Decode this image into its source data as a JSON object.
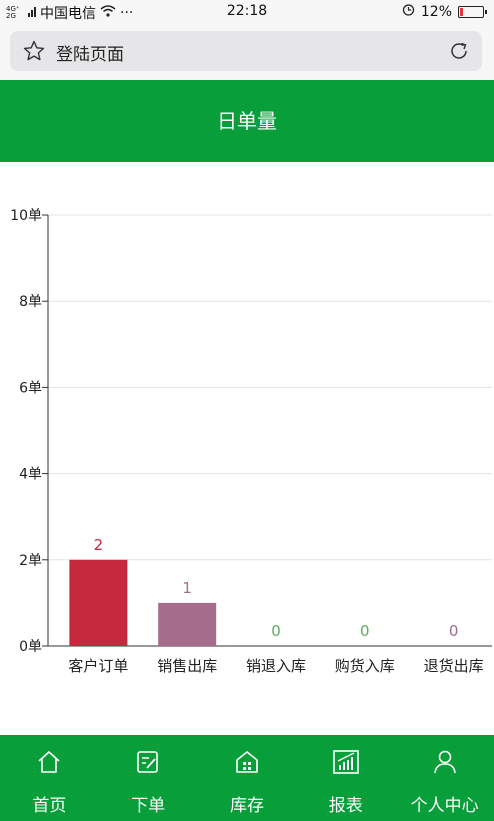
{
  "status_bar": {
    "network": "4G⁺ 2G",
    "carrier": "中国电信",
    "more": "···",
    "time": "22:18",
    "battery_text": "12%",
    "battery_level": 0.12
  },
  "url_bar": {
    "page_title": "登陆页面"
  },
  "header": {
    "title": "日单量"
  },
  "chart_data": {
    "type": "bar",
    "title": "",
    "categories": [
      "客户订单",
      "销售出库",
      "销退入库",
      "购货入库",
      "退货出库"
    ],
    "values": [
      2,
      1,
      0,
      0,
      0
    ],
    "value_labels": [
      "2",
      "1",
      "0",
      "0",
      "0"
    ],
    "bar_colors": [
      "#c4283d",
      "#a56c8c",
      "#5fad5f",
      "#5fad5f",
      "#9f6a8e"
    ],
    "label_colors": [
      "#c4283d",
      "#a56c8c",
      "#5fad5f",
      "#5fad5f",
      "#9f6a8e"
    ],
    "ylim": [
      0,
      10
    ],
    "yticks": [
      0,
      2,
      4,
      6,
      8,
      10
    ],
    "ytick_labels": [
      "0单",
      "2单",
      "4单",
      "6单",
      "8单",
      "10单"
    ],
    "grid": true,
    "xlabel": "",
    "ylabel": ""
  },
  "tab_bar": {
    "items": [
      {
        "label": "首页",
        "icon": "home-icon"
      },
      {
        "label": "下单",
        "icon": "edit-icon"
      },
      {
        "label": "库存",
        "icon": "warehouse-icon"
      },
      {
        "label": "报表",
        "icon": "report-icon"
      },
      {
        "label": "个人中心",
        "icon": "user-icon"
      }
    ]
  },
  "colors": {
    "brand": "#089e3a"
  }
}
